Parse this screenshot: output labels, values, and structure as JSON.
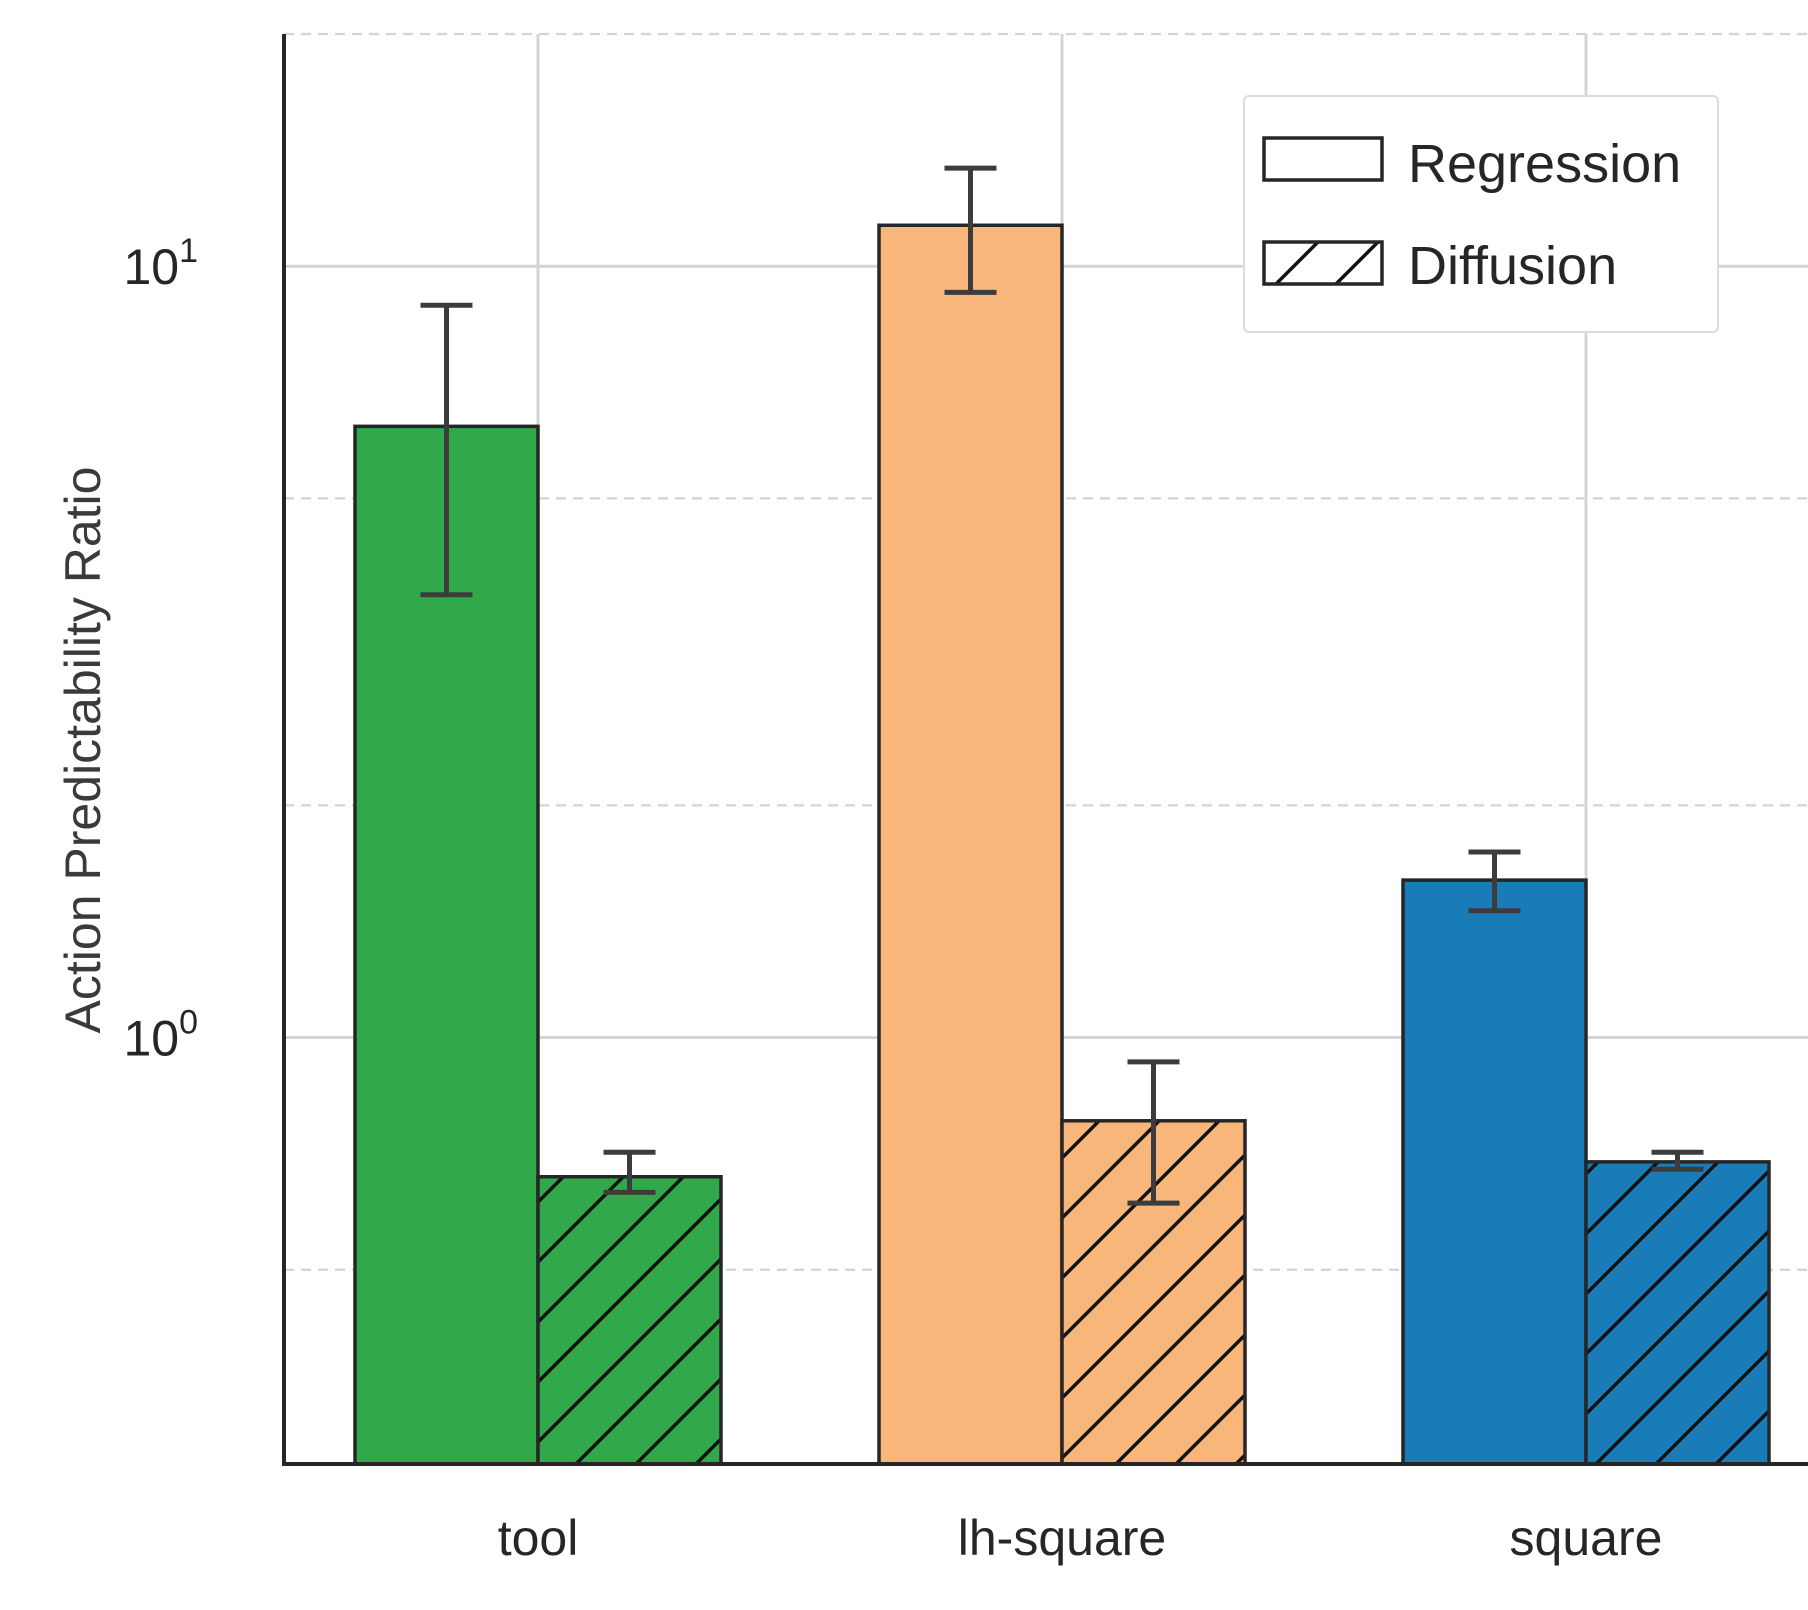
{
  "chart_data": {
    "type": "bar",
    "categories": [
      "tool",
      "lh-square",
      "square"
    ],
    "colors": [
      "#31a84a",
      "#f8b67a",
      "#1a7bb9"
    ],
    "series": [
      {
        "name": "Regression",
        "hatch": "none",
        "values": [
          6.2,
          11.3,
          1.6
        ],
        "err_low": [
          3.75,
          9.25,
          1.46
        ],
        "err_high": [
          8.9,
          13.4,
          1.74
        ]
      },
      {
        "name": "Diffusion",
        "hatch": "diagonal",
        "values": [
          0.66,
          0.78,
          0.69
        ],
        "err_low": [
          0.63,
          0.61,
          0.675
        ],
        "err_high": [
          0.71,
          0.93,
          0.71
        ]
      }
    ],
    "ylabel": "Action Predictability Ratio",
    "xlabel": "",
    "title": "",
    "yscale": "log",
    "ylim": [
      0.28,
      20.0
    ],
    "yticks": [
      {
        "value": 1,
        "base": "10",
        "exp": "0"
      },
      {
        "value": 10,
        "base": "10",
        "exp": "1"
      }
    ],
    "minor_gridlines": [
      0.5,
      2,
      5,
      20
    ],
    "grid": true,
    "legend": {
      "placement": "top-right",
      "entries": [
        "Regression",
        "Diffusion"
      ]
    }
  }
}
